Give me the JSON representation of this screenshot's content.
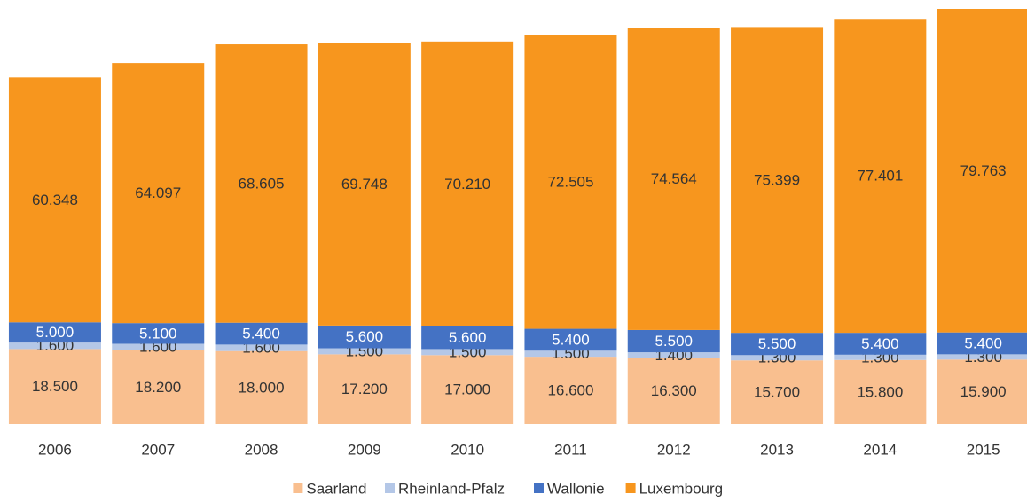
{
  "chart_data": {
    "type": "stacked_bar",
    "categories": [
      "2006",
      "2007",
      "2008",
      "2009",
      "2010",
      "2011",
      "2012",
      "2013",
      "2014",
      "2015"
    ],
    "series": [
      {
        "name": "Saarland",
        "color": "#f9bf8f",
        "values": [
          18500,
          18200,
          18000,
          17200,
          17000,
          16600,
          16300,
          15700,
          15800,
          15900
        ],
        "value_labels": [
          "18.500",
          "18.200",
          "18.000",
          "17.200",
          "17.000",
          "16.600",
          "16.300",
          "15.700",
          "15.800",
          "15.900"
        ]
      },
      {
        "name": "Rheinland-Pfalz",
        "color": "#b4c7e7",
        "values": [
          1600,
          1600,
          1600,
          1500,
          1500,
          1500,
          1400,
          1300,
          1300,
          1300
        ],
        "value_labels": [
          "1.600",
          "1.600",
          "1.600",
          "1.500",
          "1.500",
          "1.500",
          "1.400",
          "1.300",
          "1.300",
          "1.300"
        ]
      },
      {
        "name": "Wallonie",
        "color": "#4472c4",
        "values": [
          5000,
          5100,
          5400,
          5600,
          5600,
          5400,
          5500,
          5500,
          5400,
          5400
        ],
        "value_labels": [
          "5.000",
          "5.100",
          "5.400",
          "5.600",
          "5.600",
          "5.400",
          "5.500",
          "5.500",
          "5.400",
          "5.400"
        ]
      },
      {
        "name": "Luxembourg",
        "color": "#f7961e",
        "values": [
          60348,
          64097,
          68605,
          69748,
          70210,
          72505,
          74564,
          75399,
          77401,
          79763
        ],
        "value_labels": [
          "60.348",
          "64.097",
          "68.605",
          "69.748",
          "70.210",
          "72.505",
          "74.564",
          "75.399",
          "77.401",
          "79.763"
        ]
      }
    ],
    "legend": "bottom"
  }
}
